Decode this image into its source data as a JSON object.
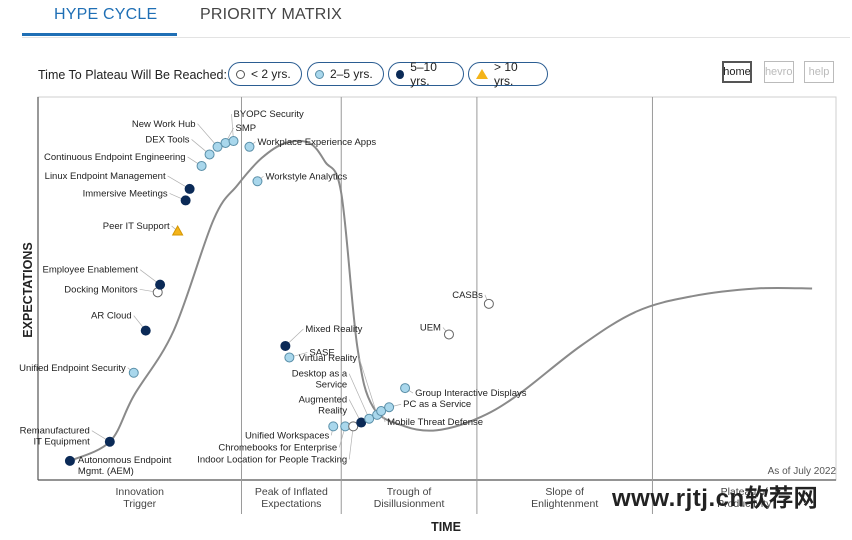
{
  "tabs": [
    {
      "label": "HYPE CYCLE",
      "active": true
    },
    {
      "label": "PRIORITY MATRIX",
      "active": false
    }
  ],
  "legend": {
    "label": "Time To Plateau Will Be Reached:",
    "items": [
      {
        "label": "< 2 yrs.",
        "marker": "open-circle"
      },
      {
        "label": "2–5 yrs.",
        "marker": "light-blue-circle"
      },
      {
        "label": "5–10 yrs.",
        "marker": "dark-blue-circle"
      },
      {
        "label": "> 10 yrs.",
        "marker": "yellow-triangle"
      }
    ]
  },
  "toolbar": {
    "home": "home",
    "chevron": "chevron",
    "help": "help"
  },
  "watermark": "www.rjtj.cn软荐网",
  "colors": {
    "accent": "#1f6fb5",
    "lt2": "#ffffff",
    "2to5": "#a9d7ec",
    "5to10": "#0b2a57",
    "gt10": "#f4b41a"
  },
  "chart_data": {
    "type": "scatter",
    "xlabel": "TIME",
    "ylabel": "EXPECTATIONS",
    "as_of": "As of July 2022",
    "xlim": [
      0,
      100
    ],
    "ylim": [
      0,
      100
    ],
    "phases": [
      {
        "label": "Innovation\nTrigger",
        "start": 0,
        "end": 25.5
      },
      {
        "label": "Peak of Inflated\nExpectations",
        "start": 25.5,
        "end": 38
      },
      {
        "label": "Trough of\nDisillusionment",
        "start": 38,
        "end": 55
      },
      {
        "label": "Slope of\nEnlightenment",
        "start": 55,
        "end": 77
      },
      {
        "label": "Plateau of\nProductivity",
        "start": 77,
        "end": 100
      }
    ],
    "curve": [
      [
        4,
        5
      ],
      [
        9,
        10
      ],
      [
        12,
        22
      ],
      [
        17,
        39
      ],
      [
        22,
        68
      ],
      [
        25,
        77
      ],
      [
        28,
        84
      ],
      [
        31,
        88
      ],
      [
        34,
        88
      ],
      [
        36,
        83
      ],
      [
        38,
        75
      ],
      [
        40,
        35
      ],
      [
        42,
        19
      ],
      [
        46,
        14
      ],
      [
        50,
        13
      ],
      [
        55,
        16
      ],
      [
        60,
        22
      ],
      [
        68,
        35
      ],
      [
        75,
        44
      ],
      [
        82,
        48
      ],
      [
        90,
        50
      ],
      [
        97,
        50
      ]
    ],
    "points": [
      {
        "name": "Autonomous Endpoint\nMgmt. (AEM)",
        "x": 4,
        "y": 5,
        "plateau": "5-10"
      },
      {
        "name": "Remanufactured\nIT Equipment",
        "x": 9,
        "y": 10,
        "plateau": "5-10"
      },
      {
        "name": "Unified Endpoint Security",
        "x": 12,
        "y": 28,
        "plateau": "2-5"
      },
      {
        "name": "AR Cloud",
        "x": 13.5,
        "y": 39,
        "plateau": "5-10"
      },
      {
        "name": "Docking Monitors",
        "x": 15,
        "y": 49,
        "plateau": "<2"
      },
      {
        "name": "Employee Enablement",
        "x": 15.3,
        "y": 51,
        "plateau": "5-10"
      },
      {
        "name": "Peer IT Support",
        "x": 17.5,
        "y": 65,
        "plateau": ">10"
      },
      {
        "name": "Immersive Meetings",
        "x": 18.5,
        "y": 73,
        "plateau": "5-10"
      },
      {
        "name": "Linux Endpoint Management",
        "x": 19,
        "y": 76,
        "plateau": "5-10"
      },
      {
        "name": "Continuous Endpoint Engineering",
        "x": 20.5,
        "y": 82,
        "plateau": "2-5"
      },
      {
        "name": "DEX Tools",
        "x": 21.5,
        "y": 85,
        "plateau": "2-5"
      },
      {
        "name": "New Work Hub",
        "x": 22.5,
        "y": 87,
        "plateau": "2-5"
      },
      {
        "name": "SMP",
        "x": 23.5,
        "y": 88,
        "plateau": "2-5"
      },
      {
        "name": "BYOPC Security",
        "x": 24.5,
        "y": 88.5,
        "plateau": "2-5"
      },
      {
        "name": "Workplace Experience Apps",
        "x": 26.5,
        "y": 87,
        "plateau": "2-5"
      },
      {
        "name": "Workstyle Analytics",
        "x": 27.5,
        "y": 78,
        "plateau": "2-5"
      },
      {
        "name": "Mixed Reality",
        "x": 31,
        "y": 35,
        "plateau": "5-10"
      },
      {
        "name": "SASE",
        "x": 31.5,
        "y": 32,
        "plateau": "2-5"
      },
      {
        "name": "Unified Workspaces",
        "x": 37,
        "y": 14,
        "plateau": "2-5"
      },
      {
        "name": "Chromebooks for Enterprise",
        "x": 38.5,
        "y": 14,
        "plateau": "2-5"
      },
      {
        "name": "Indoor Location for People Tracking",
        "x": 39.5,
        "y": 14,
        "plateau": "<2"
      },
      {
        "name": "Augmented\nReality",
        "x": 40.5,
        "y": 15,
        "plateau": "5-10"
      },
      {
        "name": "Desktop as a\nService",
        "x": 41.5,
        "y": 16,
        "plateau": "2-5"
      },
      {
        "name": "Virtual Reality",
        "x": 42.5,
        "y": 17,
        "plateau": "2-5"
      },
      {
        "name": "Mobile Threat Defense",
        "x": 43,
        "y": 18,
        "plateau": "2-5"
      },
      {
        "name": "PC as a Service",
        "x": 44,
        "y": 19,
        "plateau": "2-5"
      },
      {
        "name": "Group Interactive Displays",
        "x": 46,
        "y": 24,
        "plateau": "2-5"
      },
      {
        "name": "UEM",
        "x": 51.5,
        "y": 38,
        "plateau": "<2"
      },
      {
        "name": "CASBs",
        "x": 56.5,
        "y": 46,
        "plateau": "<2"
      }
    ]
  }
}
